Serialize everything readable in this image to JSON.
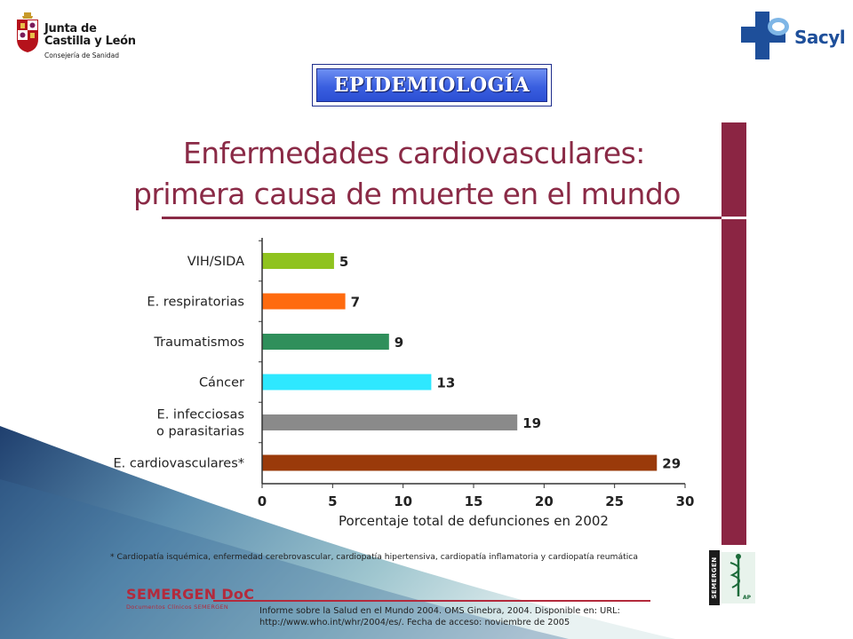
{
  "header": {
    "left_logo": {
      "line1": "Junta de",
      "line2": "Castilla y León",
      "line3": "Consejería de Sanidad",
      "icon": "coat-of-arms-icon"
    },
    "right_logo": {
      "text": "Sacyl",
      "icon": "blue-cross-icon",
      "color": "#1e4f9a"
    },
    "title": "EPIDEMIOLOGÍA"
  },
  "slide": {
    "heading_line1": "Enfermedades cardiovasculares:",
    "heading_line2": "primera causa de muerte en el mundo",
    "footnote": "* Cardiopatía isquémica, enfermedad cerebrovascular, cardiopatía hipertensiva, cardiopatía inflamatoria y cardiopatía reumática",
    "source_line1": "Informe sobre la Salud en el Mundo 2004. OMS Ginebra, 2004. Disponible en: URL:",
    "source_line2": "http://www.who.int/whr/2004/es/.  Fecha de acceso: noviembre de 2005",
    "semergen_doc_title": "SEMERGEN DoC",
    "semergen_doc_sub": "Documentos Clínicos SEMERGEN",
    "semergen_logo_word": "SEMERGEN",
    "semergen_logo_tag": "AP",
    "accent_color": "#8b2543"
  },
  "chart_data": {
    "type": "bar",
    "orientation": "horizontal",
    "title": "",
    "categories": [
      "VIH/SIDA",
      "E. respiratorias",
      "Traumatismos",
      "Cáncer",
      "E. infecciosas o parasitarias",
      "E. cardiovasculares*"
    ],
    "category_lines": [
      [
        "VIH/SIDA"
      ],
      [
        "E. respiratorias"
      ],
      [
        "Traumatismos"
      ],
      [
        "Cáncer"
      ],
      [
        "E. infecciosas",
        "o parasitarias"
      ],
      [
        "E. cardiovasculares*"
      ]
    ],
    "values": [
      5,
      7,
      9,
      13,
      19,
      29
    ],
    "bar_lengths": [
      5.1,
      5.9,
      9.0,
      12.0,
      18.1,
      28.0
    ],
    "colors": [
      "#8fc31f",
      "#ff6b0f",
      "#2f8f5b",
      "#2ee8ff",
      "#8a8a8a",
      "#9a3a0a"
    ],
    "xlabel": "Porcentaje total de defunciones en 2002",
    "ylabel": "",
    "xlim": [
      0,
      30
    ],
    "xticks": [
      0,
      5,
      10,
      15,
      20,
      25,
      30
    ],
    "grid": false,
    "legend": "none"
  }
}
